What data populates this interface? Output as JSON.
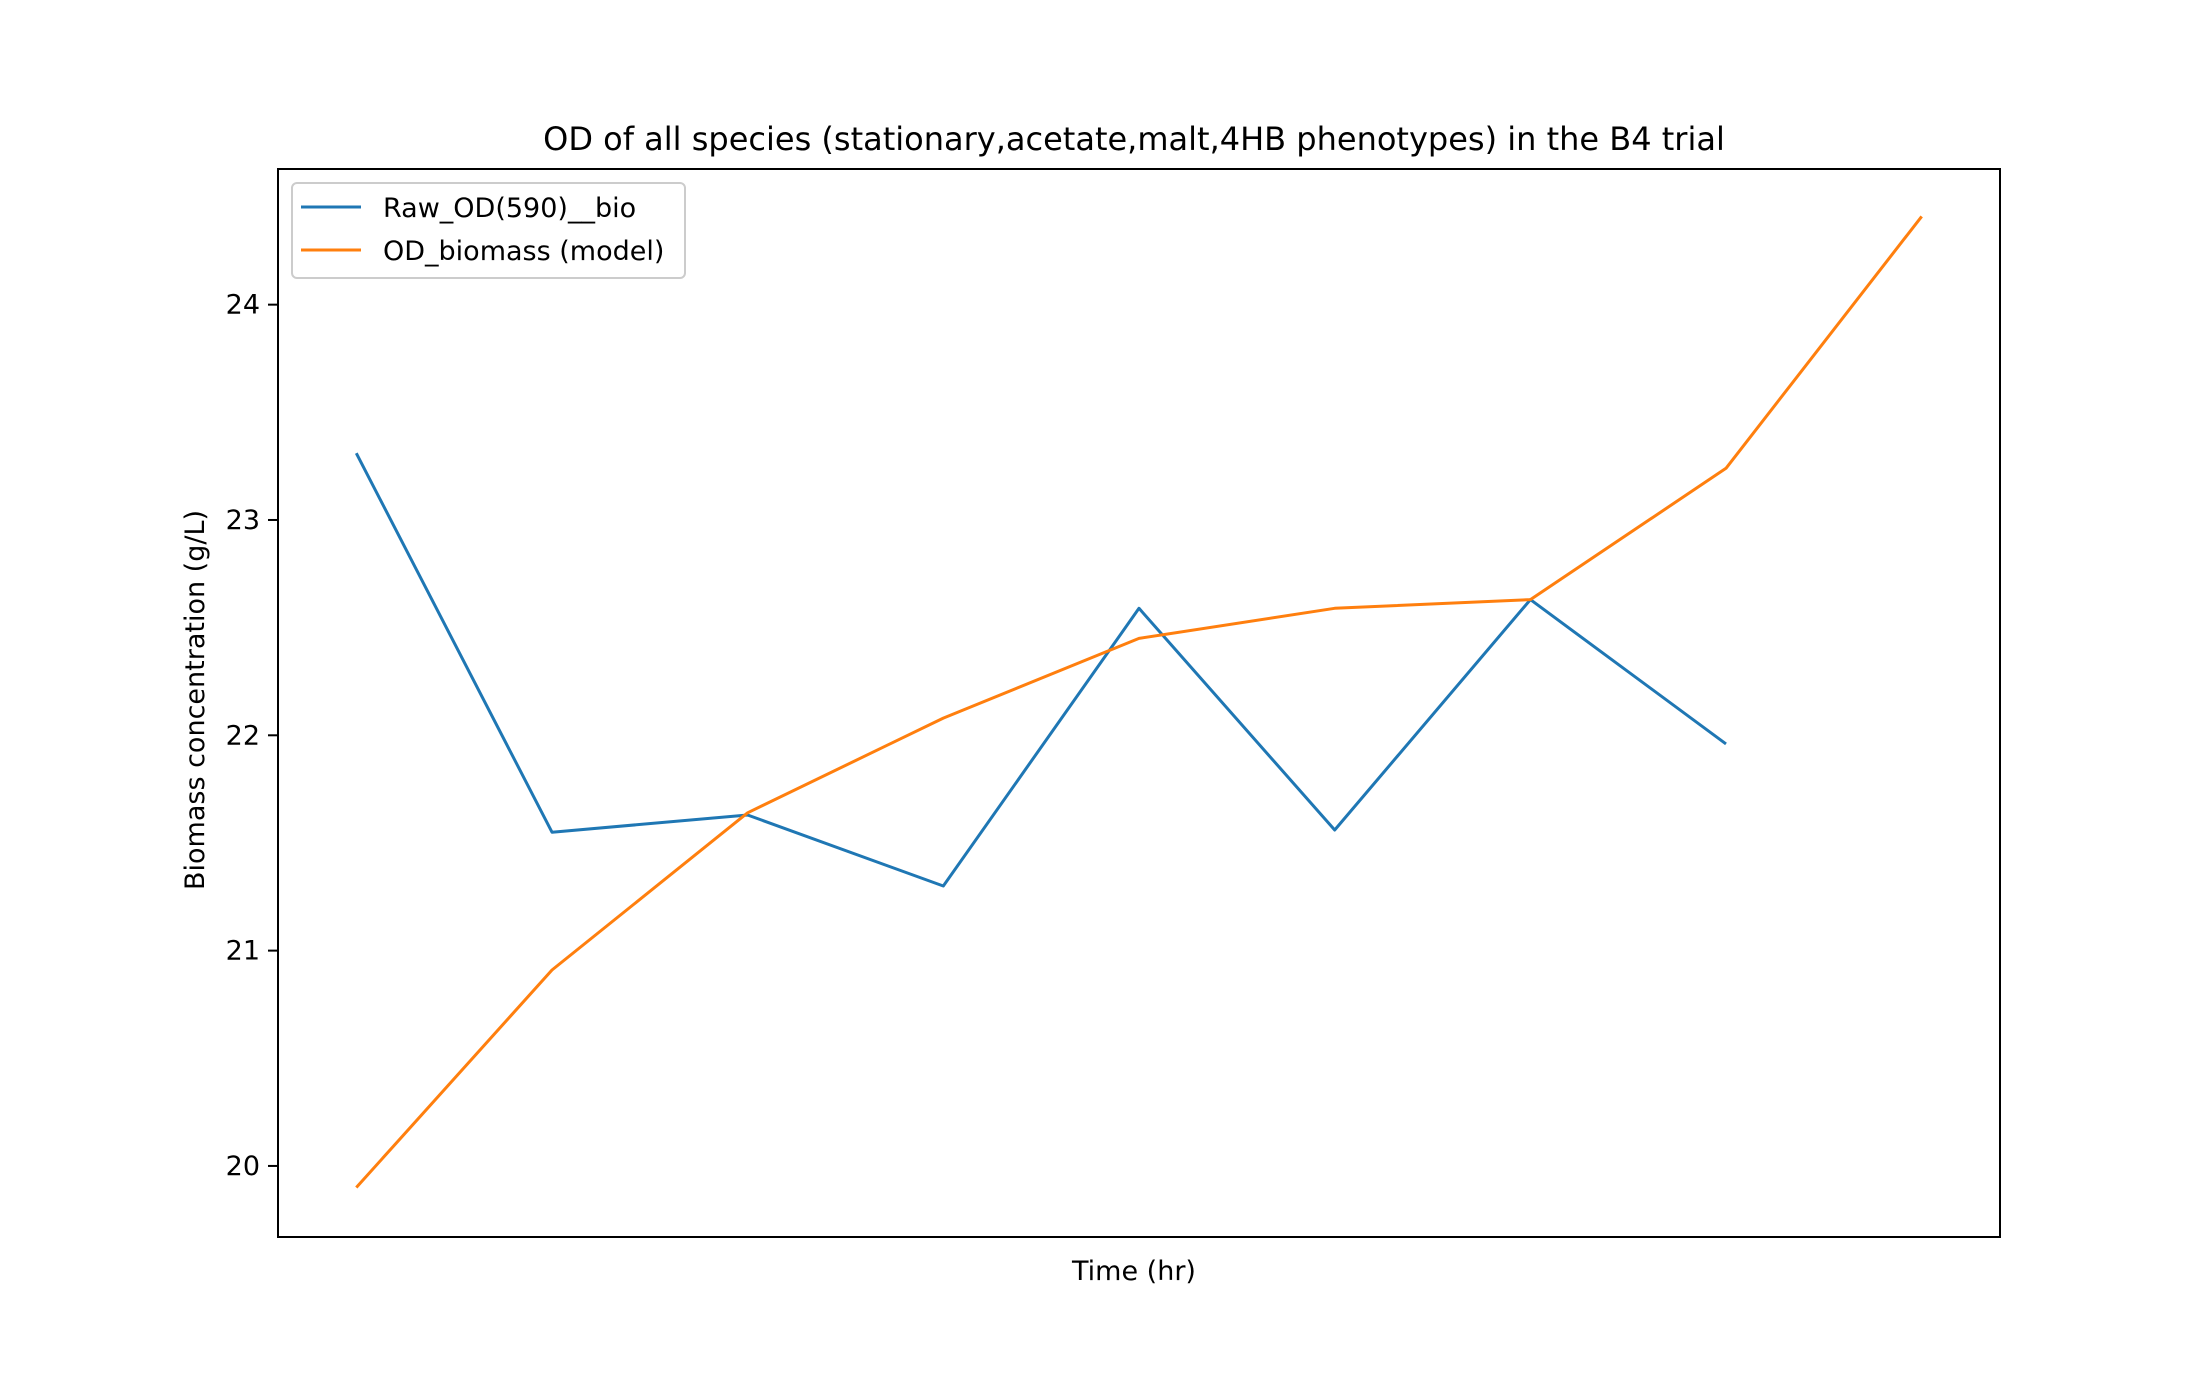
{
  "chart_data": {
    "type": "line",
    "title": "OD of all species (stationary,acetate,malt,4HB phenotypes) in the B4 trial",
    "xlabel": "Time (hr)",
    "ylabel": "Biomass concentration (g/L)",
    "x": [
      0,
      1,
      2,
      3,
      4,
      5,
      6,
      7,
      8
    ],
    "xlim": [
      -0.4,
      8.4
    ],
    "ylim": [
      19.67,
      24.63
    ],
    "yticks": [
      20,
      21,
      22,
      23,
      24
    ],
    "xticks_visible": false,
    "grid": false,
    "legend_position": "upper-left",
    "series": [
      {
        "name": "Raw_OD(590)__bio",
        "color": "#1f77b4",
        "values": [
          23.31,
          21.55,
          21.63,
          21.3,
          22.59,
          21.56,
          22.63,
          21.96,
          null
        ]
      },
      {
        "name": "OD_biomass (model)",
        "color": "#ff7f0e",
        "values": [
          19.9,
          20.91,
          21.64,
          22.08,
          22.45,
          22.59,
          22.63,
          23.24,
          24.41
        ]
      }
    ]
  }
}
